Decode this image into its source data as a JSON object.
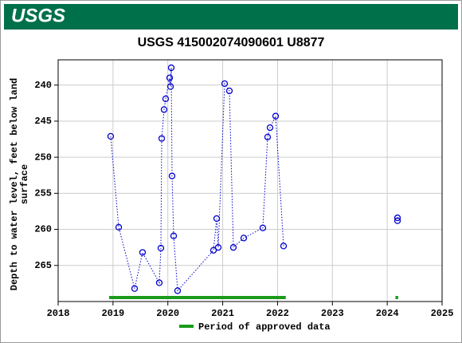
{
  "header": {
    "logo": "USGS"
  },
  "chart_data": {
    "type": "line",
    "title": "USGS 415002074090601 U8877",
    "ylabel": [
      "Depth to water level, feet below land",
      "surface"
    ],
    "xlim": [
      2018,
      2025
    ],
    "xticks": [
      2018,
      2019,
      2020,
      2021,
      2022,
      2023,
      2024,
      2025
    ],
    "ylim": [
      236.5,
      270
    ],
    "y_inverted": true,
    "yticks": [
      240,
      245,
      250,
      255,
      260,
      265
    ],
    "grid": true,
    "series": [
      {
        "color": "#0000cc",
        "x": [
          2018.958,
          2019.104,
          2019.394,
          2019.539,
          2019.844,
          2019.873,
          2019.888,
          2019.931,
          2019.96,
          2020.033,
          2020.048,
          2020.062,
          2020.077,
          2020.106,
          2020.178,
          2020.832,
          2020.89,
          2020.919,
          2021.035,
          2021.122,
          2021.195,
          2021.384,
          2021.732,
          2021.819,
          2021.863,
          2021.965,
          2022.11,
          null,
          2024.187,
          2024.187
        ],
        "values": [
          247.1,
          259.7,
          268.2,
          263.2,
          267.4,
          262.6,
          247.4,
          243.4,
          241.9,
          239.0,
          240.2,
          237.6,
          252.6,
          260.9,
          268.5,
          262.9,
          258.5,
          262.5,
          239.8,
          240.8,
          262.5,
          261.2,
          259.8,
          247.2,
          245.9,
          244.3,
          262.3,
          null,
          258.4,
          258.8
        ]
      }
    ],
    "approved_periods": [
      [
        2018.93,
        2022.15
      ],
      [
        2024.15,
        2024.2
      ]
    ],
    "approved_color": "#1a9b1a",
    "approved_label": "Period of approved data"
  }
}
